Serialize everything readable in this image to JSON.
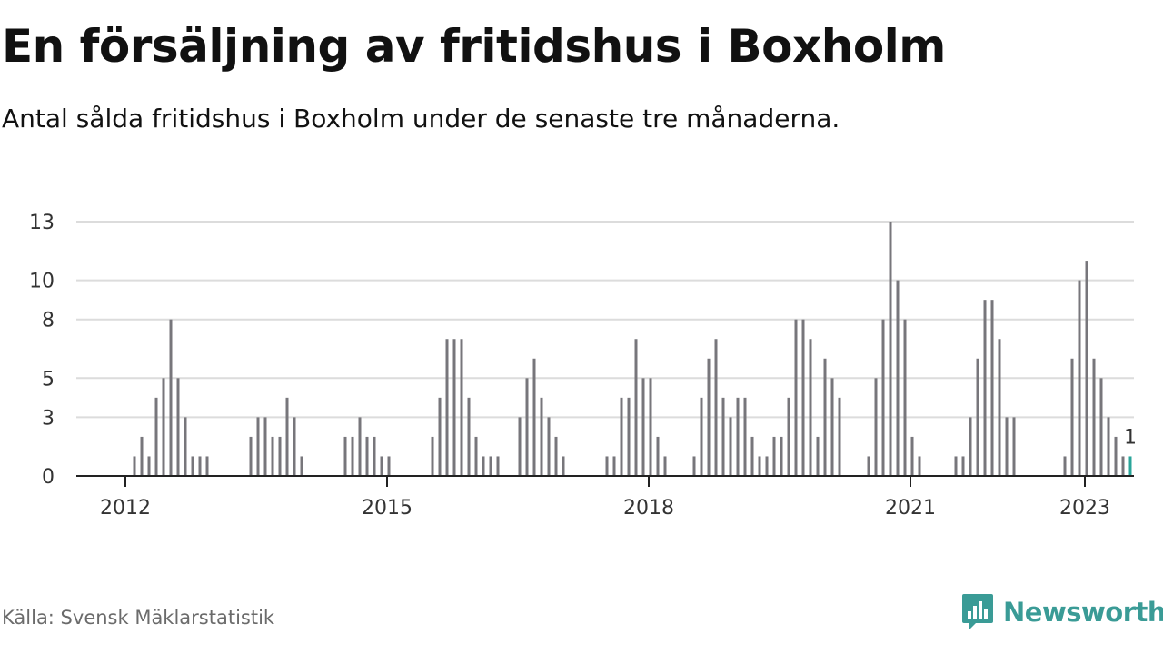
{
  "title": "En försäljning av fritidshus i Boxholm",
  "subtitle": "Antal sålda fritidshus i Boxholm under de senaste tre månaderna.",
  "source": "Källa: Svensk Mäklarstatistik",
  "brand": {
    "name": "Newsworthy",
    "icon": "newsworthy-chart-bubble-icon",
    "color": "#3a9b96"
  },
  "colors": {
    "bar": "#77767b",
    "highlight": "#2aa59a",
    "grid": "#dcdcdc",
    "axis": "#222222"
  },
  "chart_data": {
    "type": "bar",
    "ylim": [
      0,
      13
    ],
    "y_ticks": [
      0,
      3,
      5,
      8,
      10,
      13
    ],
    "x_ticks": [
      "2012",
      "2015",
      "2018",
      "2021",
      "2023"
    ],
    "grid": true,
    "start": "2012-01",
    "annotation": "1",
    "values": [
      1,
      2,
      1,
      4,
      5,
      8,
      5,
      3,
      1,
      1,
      1,
      0,
      0,
      0,
      0,
      0,
      2,
      3,
      3,
      2,
      2,
      4,
      3,
      1,
      0,
      0,
      0,
      0,
      0,
      2,
      2,
      3,
      2,
      2,
      1,
      1,
      0,
      0,
      0,
      0,
      0,
      2,
      4,
      7,
      7,
      7,
      4,
      2,
      1,
      1,
      1,
      0,
      0,
      3,
      5,
      6,
      4,
      3,
      2,
      1,
      0,
      0,
      0,
      0,
      0,
      1,
      1,
      4,
      4,
      7,
      5,
      5,
      2,
      1,
      0,
      0,
      0,
      1,
      4,
      6,
      7,
      4,
      3,
      4,
      4,
      2,
      1,
      1,
      2,
      2,
      4,
      8,
      8,
      7,
      2,
      6,
      5,
      4,
      0,
      0,
      0,
      1,
      5,
      8,
      13,
      10,
      8,
      2,
      1,
      0,
      0,
      0,
      0,
      1,
      1,
      3,
      6,
      9,
      9,
      7,
      3,
      3,
      0,
      0,
      0,
      0,
      0,
      0,
      1,
      6,
      10,
      11,
      6,
      5,
      3,
      2,
      1,
      1
    ]
  }
}
